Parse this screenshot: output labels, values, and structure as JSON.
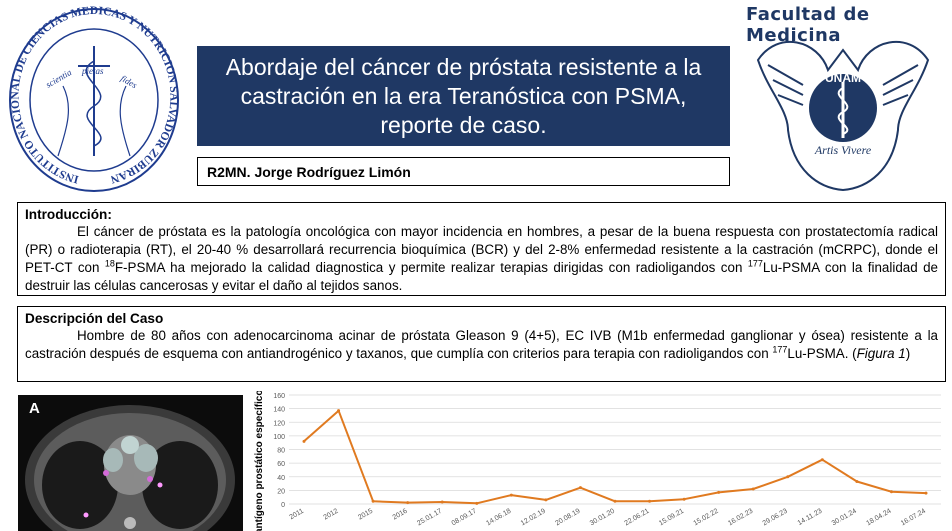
{
  "logos": {
    "left_institution_text": "INSTITUTO NACIONAL DE CIENCIAS MEDICAS Y NUTRICION SALVADOR ZUBIRAN",
    "left_motto": [
      "scientia",
      "pietas",
      "fides"
    ],
    "right_title": "Facultad de Medicina",
    "right_seal_text": "UNAM",
    "right_seal_motto": "Artis Vivere"
  },
  "title": "Abordaje del cáncer de próstata resistente a la castración en la era Teranóstica con PSMA, reporte de caso.",
  "author": "R2MN. Jorge Rodríguez Limón",
  "intro": {
    "heading": "Introducción:",
    "t1": "El cáncer de próstata es la patología oncológica con mayor incidencia en hombres, a pesar de la buena respuesta con prostatectomía  radical (PR) o radioterapia (RT), el 20-40 % desarrollará recurrencia bioquímica (BCR) y del 2-8% enfermedad resistente a la castración (mCRPC), donde el PET-CT con ",
    "sup1": "18",
    "t2": "F-PSMA ha mejorado la calidad diagnostica y permite realizar terapias dirigidas con radioligandos con ",
    "sup2": "177",
    "t3": "Lu-PSMA con la finalidad de destruir las células cancerosas y evitar el daño al tejidos sanos."
  },
  "caso": {
    "heading": "Descripción del Caso",
    "t1": "Hombre de 80 años con adenocarcinoma acinar de próstata Gleason 9 (4+5), EC IVB (M1b enfermedad ganglionar y ósea) resistente a la castración después de esquema con antiandrogénico y taxanos, que cumplía con criterios para terapia con radioligandos con ",
    "sup": "177",
    "t2": "Lu-PSMA. (",
    "fig": "Figura 1",
    "t3": ")"
  },
  "image_panel": {
    "label": "A"
  },
  "chart_data": {
    "type": "line",
    "ylabel": "antígeno prostático específico",
    "xlabel": "",
    "ylim": [
      0,
      160
    ],
    "yticks": [
      0,
      20,
      40,
      60,
      80,
      100,
      120,
      140,
      160
    ],
    "grid": true,
    "categories": [
      "2011",
      "2012",
      "2015",
      "2016",
      "25.01.17",
      "08.09.17",
      "14.06.18",
      "12.02.19",
      "20.08.19",
      "30.01.20",
      "22.06.21",
      "15.09.21",
      "15.02.22",
      "16.02.23",
      "29.06.23",
      "14.11.23",
      "30.01.24",
      "18.04.24",
      "16.07.24"
    ],
    "values": [
      92,
      137,
      4,
      2,
      3,
      1,
      13,
      6,
      24,
      4,
      4,
      7,
      17,
      22,
      40,
      65,
      33,
      18,
      16
    ],
    "line_color": "#e07a20"
  }
}
